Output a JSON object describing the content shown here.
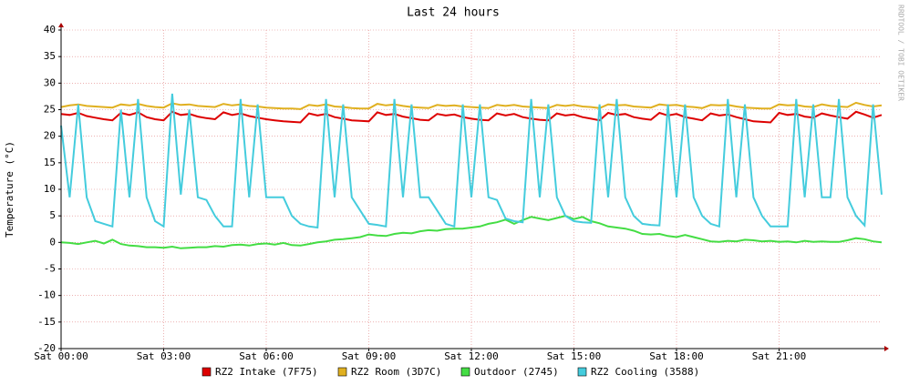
{
  "chart_data": {
    "type": "line",
    "title": "Last 24 hours",
    "y_label": "Temperature (°C)",
    "watermark": "RRDTOOL / TOBI OETIKER",
    "xlim": [
      0,
      24
    ],
    "ylim": [
      -20,
      40
    ],
    "xticks": [
      {
        "value": 0,
        "label": "Sat 00:00"
      },
      {
        "value": 3,
        "label": "Sat 03:00"
      },
      {
        "value": 6,
        "label": "Sat 06:00"
      },
      {
        "value": 9,
        "label": "Sat 09:00"
      },
      {
        "value": 12,
        "label": "Sat 12:00"
      },
      {
        "value": 15,
        "label": "Sat 15:00"
      },
      {
        "value": 18,
        "label": "Sat 18:00"
      },
      {
        "value": 21,
        "label": "Sat 21:00"
      }
    ],
    "yticks": [
      -20,
      -15,
      -10,
      -5,
      0,
      5,
      10,
      15,
      20,
      25,
      30,
      35,
      40
    ],
    "grid": true,
    "x": [
      0,
      0.25,
      0.5,
      0.75,
      1,
      1.25,
      1.5,
      1.75,
      2,
      2.25,
      2.5,
      2.75,
      3,
      3.25,
      3.5,
      3.75,
      4,
      4.25,
      4.5,
      4.75,
      5,
      5.25,
      5.5,
      5.75,
      6,
      6.25,
      6.5,
      6.75,
      7,
      7.25,
      7.5,
      7.75,
      8,
      8.25,
      8.5,
      8.75,
      9,
      9.25,
      9.5,
      9.75,
      10,
      10.25,
      10.5,
      10.75,
      11,
      11.25,
      11.5,
      11.75,
      12,
      12.25,
      12.5,
      12.75,
      13,
      13.25,
      13.5,
      13.75,
      14,
      14.25,
      14.5,
      14.75,
      15,
      15.25,
      15.5,
      15.75,
      16,
      16.25,
      16.5,
      16.75,
      17,
      17.25,
      17.5,
      17.75,
      18,
      18.25,
      18.5,
      18.75,
      19,
      19.25,
      19.5,
      19.75,
      20,
      20.25,
      20.5,
      20.75,
      21,
      21.25,
      21.5,
      21.75,
      22,
      22.25,
      22.5,
      22.75,
      23,
      23.25,
      23.5,
      23.75,
      24
    ],
    "series": [
      {
        "name": "RZ2 Intake (7F75)",
        "color": "#dd0000",
        "values": [
          24.2,
          24.0,
          24.4,
          23.8,
          23.5,
          23.2,
          23.0,
          24.4,
          24.0,
          24.5,
          23.6,
          23.2,
          23.0,
          24.6,
          24.0,
          24.2,
          23.7,
          23.4,
          23.2,
          24.5,
          24.0,
          24.3,
          23.8,
          23.5,
          23.2,
          23.0,
          22.8,
          22.7,
          22.6,
          24.3,
          23.9,
          24.2,
          23.6,
          23.3,
          23.0,
          22.9,
          22.8,
          24.5,
          24.0,
          24.2,
          23.7,
          23.4,
          23.1,
          23.0,
          24.2,
          23.9,
          24.1,
          23.6,
          23.3,
          23.1,
          23.0,
          24.3,
          23.9,
          24.2,
          23.6,
          23.3,
          23.1,
          23.0,
          24.3,
          23.9,
          24.1,
          23.6,
          23.3,
          23.0,
          24.4,
          24.0,
          24.2,
          23.6,
          23.3,
          23.1,
          24.4,
          23.9,
          24.2,
          23.6,
          23.3,
          23.0,
          24.3,
          23.9,
          24.1,
          23.6,
          23.2,
          22.8,
          22.7,
          22.6,
          24.4,
          24.0,
          24.2,
          23.7,
          23.5,
          24.3,
          23.9,
          23.6,
          23.3,
          24.6,
          24.1,
          23.5,
          24.0
        ]
      },
      {
        "name": "RZ2 Room (3D7C)",
        "color": "#e0b020",
        "values": [
          25.5,
          25.8,
          26.0,
          25.7,
          25.6,
          25.5,
          25.4,
          26.0,
          25.8,
          26.1,
          25.7,
          25.5,
          25.4,
          26.2,
          25.9,
          26.0,
          25.7,
          25.6,
          25.5,
          26.1,
          25.8,
          26.0,
          25.7,
          25.6,
          25.4,
          25.3,
          25.2,
          25.2,
          25.1,
          25.9,
          25.7,
          26.0,
          25.6,
          25.5,
          25.3,
          25.2,
          25.2,
          26.1,
          25.8,
          26.0,
          25.7,
          25.5,
          25.4,
          25.3,
          25.9,
          25.7,
          25.8,
          25.6,
          25.5,
          25.4,
          25.3,
          25.9,
          25.7,
          25.9,
          25.6,
          25.5,
          25.4,
          25.3,
          25.9,
          25.7,
          25.9,
          25.6,
          25.5,
          25.3,
          26.0,
          25.8,
          25.9,
          25.6,
          25.5,
          25.4,
          26.0,
          25.8,
          25.9,
          25.6,
          25.5,
          25.3,
          25.9,
          25.8,
          25.9,
          25.6,
          25.4,
          25.3,
          25.2,
          25.2,
          26.0,
          25.8,
          25.9,
          25.6,
          25.5,
          26.0,
          25.7,
          25.6,
          25.5,
          26.3,
          25.9,
          25.6,
          25.8
        ]
      },
      {
        "name": "Outdoor (2745)",
        "color": "#44dd44",
        "values": [
          0,
          -0.1,
          -0.3,
          0,
          0.3,
          -0.2,
          0.5,
          -0.3,
          -0.6,
          -0.7,
          -0.9,
          -0.9,
          -1.0,
          -0.8,
          -1.1,
          -1.0,
          -0.9,
          -0.9,
          -0.7,
          -0.8,
          -0.5,
          -0.4,
          -0.6,
          -0.3,
          -0.2,
          -0.4,
          -0.1,
          -0.5,
          -0.6,
          -0.3,
          0,
          0.2,
          0.5,
          0.6,
          0.8,
          1.0,
          1.5,
          1.3,
          1.2,
          1.6,
          1.8,
          1.7,
          2.1,
          2.3,
          2.2,
          2.5,
          2.6,
          2.6,
          2.8,
          3.0,
          3.5,
          3.8,
          4.3,
          3.5,
          4.2,
          4.8,
          4.5,
          4.2,
          4.6,
          5.0,
          4.4,
          4.8,
          4.0,
          3.6,
          3.0,
          2.8,
          2.6,
          2.2,
          1.6,
          1.5,
          1.6,
          1.2,
          1.0,
          1.4,
          1.0,
          0.6,
          0.2,
          0.1,
          0.3,
          0.2,
          0.5,
          0.4,
          0.2,
          0.3,
          0.1,
          0.2,
          0,
          0.3,
          0.1,
          0.2,
          0.1,
          0.1,
          0.4,
          0.8,
          0.6,
          0.2,
          0
        ]
      },
      {
        "name": "RZ2 Cooling (3588)",
        "color": "#44ccdd",
        "values": [
          22,
          8.5,
          26,
          8.5,
          4,
          3.5,
          3,
          25,
          8.5,
          27,
          8.5,
          4,
          3,
          28,
          9,
          25,
          8.5,
          8,
          5,
          3,
          3,
          27,
          8.5,
          26,
          8.5,
          8.5,
          8.5,
          5,
          3.5,
          3,
          2.8,
          27,
          8.5,
          26,
          8.5,
          6,
          3.5,
          3.3,
          3,
          27,
          8.5,
          26,
          8.5,
          8.5,
          6,
          3.5,
          3,
          26,
          8.5,
          26,
          8.5,
          8,
          4.5,
          4,
          3.8,
          27,
          8.5,
          26,
          8.5,
          5,
          4,
          3.8,
          3.7,
          26,
          8.5,
          27,
          8.5,
          5,
          3.5,
          3.3,
          3.2,
          26,
          8.5,
          26,
          8.5,
          5,
          3.5,
          3,
          27,
          8.5,
          26,
          8.5,
          5,
          3,
          3,
          3,
          27,
          8.5,
          26,
          8.5,
          8.5,
          27,
          8.5,
          5,
          3.2,
          26,
          9
        ]
      }
    ]
  }
}
